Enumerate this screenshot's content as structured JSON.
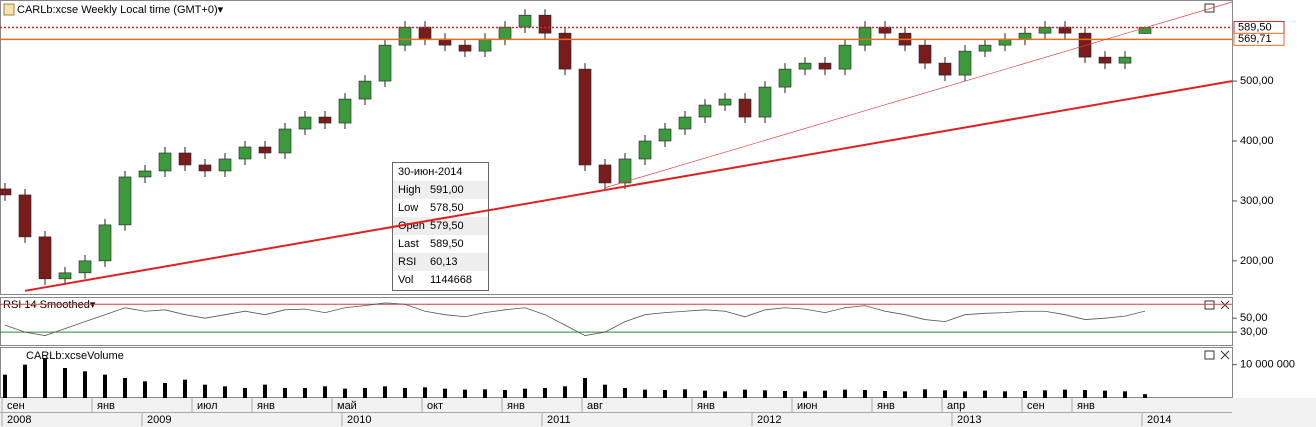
{
  "chart_data": [
    {
      "type": "candlestick",
      "title": "CARLb:xcse Weekly Local time (GMT+0)▾",
      "up_color": "#3c9a3c",
      "down_color": "#7a1c1c",
      "open": [
        320,
        310,
        240,
        170,
        180,
        200,
        260,
        340,
        350,
        380,
        360,
        350,
        370,
        390,
        380,
        420,
        440,
        430,
        470,
        500,
        560,
        590,
        570,
        560,
        550,
        570,
        590,
        610,
        580,
        520,
        360,
        330,
        370,
        400,
        420,
        440,
        460,
        470,
        440,
        490,
        520,
        530,
        520,
        560,
        590,
        580,
        560,
        530,
        510,
        550,
        560,
        570,
        580,
        590,
        580,
        540,
        530,
        579.5
      ],
      "high": [
        330,
        320,
        250,
        190,
        210,
        270,
        350,
        360,
        390,
        390,
        370,
        380,
        400,
        400,
        430,
        450,
        450,
        480,
        510,
        570,
        600,
        600,
        580,
        570,
        580,
        600,
        620,
        620,
        590,
        530,
        370,
        380,
        410,
        430,
        450,
        470,
        480,
        480,
        500,
        530,
        540,
        540,
        570,
        600,
        600,
        590,
        570,
        540,
        560,
        570,
        580,
        590,
        600,
        600,
        590,
        550,
        550,
        591
      ],
      "low": [
        300,
        230,
        160,
        160,
        170,
        190,
        250,
        330,
        340,
        350,
        340,
        340,
        360,
        370,
        370,
        410,
        420,
        420,
        460,
        490,
        550,
        560,
        550,
        540,
        540,
        560,
        580,
        570,
        510,
        350,
        320,
        320,
        360,
        390,
        410,
        430,
        450,
        430,
        430,
        480,
        510,
        510,
        510,
        550,
        570,
        550,
        520,
        500,
        500,
        540,
        550,
        560,
        570,
        570,
        530,
        520,
        520,
        578.5
      ],
      "close": [
        310,
        240,
        170,
        180,
        200,
        260,
        340,
        350,
        380,
        360,
        350,
        370,
        390,
        380,
        420,
        440,
        430,
        470,
        500,
        560,
        590,
        570,
        560,
        550,
        570,
        590,
        610,
        580,
        520,
        360,
        330,
        370,
        400,
        420,
        440,
        460,
        470,
        440,
        490,
        520,
        530,
        520,
        560,
        590,
        580,
        560,
        530,
        510,
        550,
        560,
        570,
        580,
        590,
        580,
        540,
        530,
        540,
        589.5
      ],
      "ylim": [
        143,
        632
      ],
      "yticks": [
        {
          "value": 200,
          "label": "200,00"
        },
        {
          "value": 300,
          "label": "300,00"
        },
        {
          "value": 400,
          "label": "400,00"
        },
        {
          "value": 500,
          "label": "500,00"
        }
      ],
      "hlines": [
        {
          "value": 589.5,
          "label": "589,50",
          "color": "#c03030",
          "style": "dotted"
        },
        {
          "value": 569.71,
          "label": "569,71",
          "color": "#e07020",
          "style": "solid"
        }
      ],
      "trendlines": [
        {
          "from": [
            1,
            150
          ],
          "to": [
            61.35,
            500
          ],
          "color": "#e02020",
          "width": 2
        },
        {
          "from": [
            30,
            322
          ],
          "to": [
            61.35,
            632
          ],
          "color": "#e04040",
          "width": 0.7
        }
      ]
    },
    {
      "type": "line",
      "title": "RSI 14 Smoothed▾",
      "color": "#555555",
      "values": [
        40,
        30,
        25,
        35,
        45,
        55,
        65,
        60,
        62,
        55,
        50,
        55,
        60,
        55,
        62,
        63,
        58,
        65,
        68,
        72,
        70,
        60,
        55,
        52,
        58,
        62,
        65,
        55,
        40,
        25,
        30,
        45,
        55,
        58,
        60,
        62,
        60,
        52,
        62,
        65,
        63,
        58,
        65,
        68,
        60,
        55,
        48,
        45,
        55,
        57,
        58,
        60,
        60,
        55,
        48,
        50,
        53,
        60.13
      ],
      "ylim": [
        10,
        79
      ],
      "yticks": [
        {
          "value": 50,
          "label": "50,00"
        },
        {
          "value": 30,
          "label": "30,00"
        }
      ],
      "levels": [
        {
          "value": 70,
          "color": "#d04040"
        },
        {
          "value": 30,
          "color": "#2a8a2a"
        }
      ]
    },
    {
      "type": "bar",
      "title": "CARLb:xcseVolume",
      "color": "#000000",
      "values": [
        7000000,
        10000000,
        12000000,
        9000000,
        8000000,
        7000000,
        6000000,
        5000000,
        4500000,
        5500000,
        4000000,
        3500000,
        3000000,
        4000000,
        3000000,
        3000000,
        3500000,
        2800000,
        3000000,
        3500000,
        3000000,
        3200000,
        2800000,
        2500000,
        2600000,
        2400000,
        2800000,
        3000000,
        3500000,
        6000000,
        4000000,
        3000000,
        2500000,
        2400000,
        2600000,
        2200000,
        2000000,
        2500000,
        2300000,
        2100000,
        2000000,
        2200000,
        2500000,
        2400000,
        2100000,
        2000000,
        2600000,
        2300000,
        2000000,
        2200000,
        2000000,
        2100000,
        2300000,
        2500000,
        2400000,
        2200000,
        2000000,
        1144668
      ],
      "ylim": [
        0,
        15000000
      ],
      "yticks": [
        {
          "value": 10000000,
          "label": "10 000 000"
        }
      ]
    }
  ],
  "time_axis": {
    "months": [
      {
        "label": "сен",
        "index": 0
      },
      {
        "label": "янв",
        "index": 4.5
      },
      {
        "label": "июл",
        "index": 9.5
      },
      {
        "label": "янв",
        "index": 12.5
      },
      {
        "label": "май",
        "index": 16.5
      },
      {
        "label": "окт",
        "index": 21
      },
      {
        "label": "янв",
        "index": 25
      },
      {
        "label": "авг",
        "index": 29
      },
      {
        "label": "янв",
        "index": 34.5
      },
      {
        "label": "июн",
        "index": 39.5
      },
      {
        "label": "янв",
        "index": 43.5
      },
      {
        "label": "апр",
        "index": 47
      },
      {
        "label": "сен",
        "index": 51
      },
      {
        "label": "янв",
        "index": 53.5
      }
    ],
    "years": [
      {
        "label": "2008",
        "index": 0
      },
      {
        "label": "2009",
        "index": 7
      },
      {
        "label": "2010",
        "index": 17
      },
      {
        "label": "2011",
        "index": 27
      },
      {
        "label": "2012",
        "index": 37.5
      },
      {
        "label": "2013",
        "index": 47.5
      },
      {
        "label": "2014",
        "index": 57
      }
    ]
  },
  "tooltip": {
    "date": "30-июн-2014",
    "rows": [
      {
        "label": "High",
        "value": "591,00"
      },
      {
        "label": "Low",
        "value": "578,50"
      },
      {
        "label": "Open",
        "value": "579,50"
      },
      {
        "label": "Last",
        "value": "589,50"
      },
      {
        "label": "RSI",
        "value": "60,13"
      },
      {
        "label": "Vol",
        "value": "1144668"
      }
    ]
  }
}
